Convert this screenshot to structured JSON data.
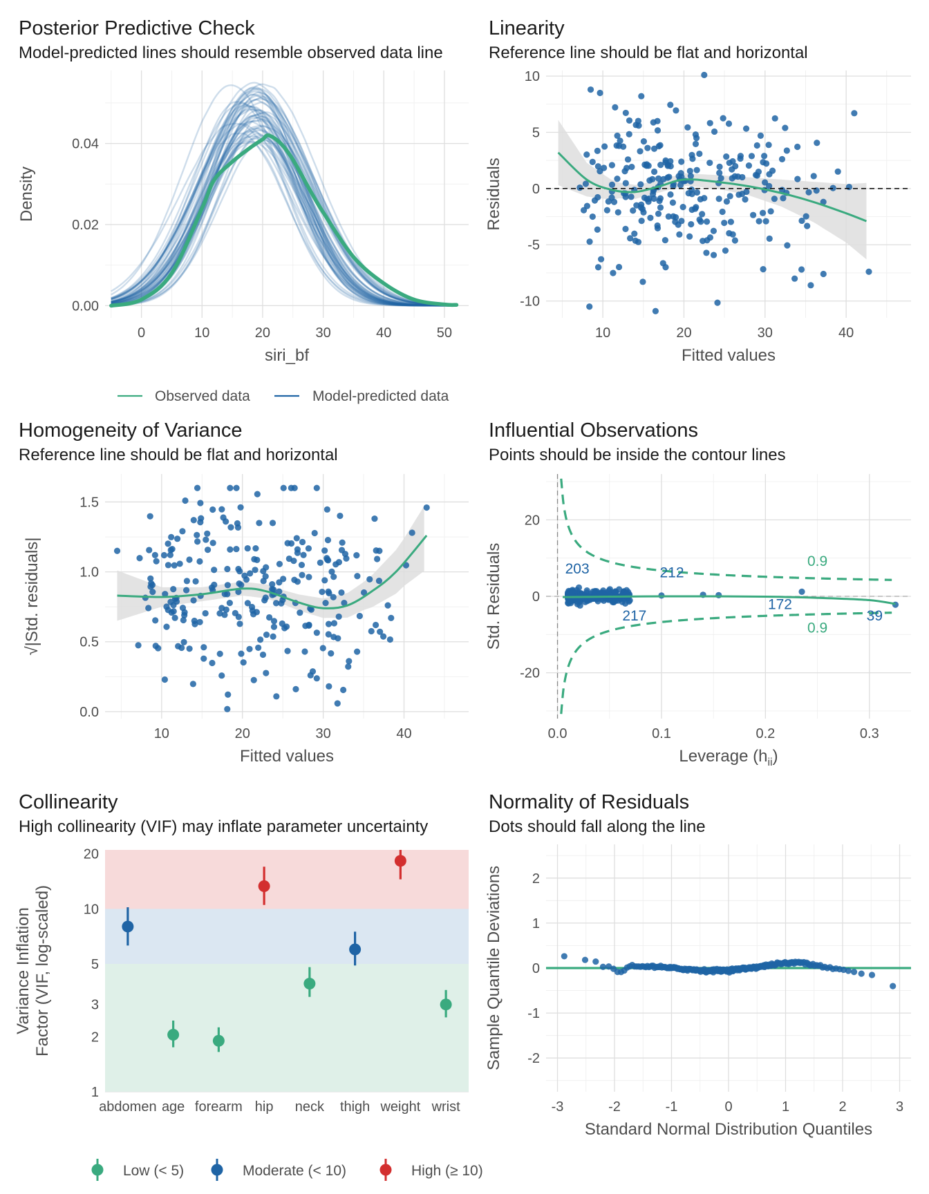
{
  "colors": {
    "green": "#3aaa7f",
    "blue": "#1f64a5",
    "red": "#d32f2f",
    "band_low": "#dff0e8",
    "band_mod": "#dbe7f2",
    "band_high": "#f7dada",
    "ci_gray": "#dedede"
  },
  "chart_data": [
    {
      "id": "ppc",
      "type": "line",
      "title": "Posterior Predictive Check",
      "subtitle": "Model-predicted lines should resemble observed data line",
      "xlabel": "siri_bf",
      "ylabel": "Density",
      "xlim": [
        -6,
        54
      ],
      "ylim": [
        -0.003,
        0.058
      ],
      "xticks": [
        0,
        10,
        20,
        30,
        40,
        50
      ],
      "xtick_labels": [
        "0",
        "10",
        "20",
        "30",
        "40",
        "50"
      ],
      "yticks": [
        0.0,
        0.02,
        0.04
      ],
      "ytick_labels": [
        "0.00",
        "0.02",
        "0.04"
      ],
      "observed": {
        "name": "Observed data",
        "x": [
          -5,
          0,
          5,
          10,
          12,
          15,
          18,
          20,
          21,
          23,
          25,
          28,
          30,
          35,
          40,
          45,
          50,
          52
        ],
        "y": [
          0.0,
          0.0015,
          0.008,
          0.024,
          0.031,
          0.0355,
          0.039,
          0.041,
          0.042,
          0.04,
          0.036,
          0.028,
          0.023,
          0.012,
          0.0055,
          0.0015,
          0.0003,
          0.0002
        ]
      },
      "predicted": {
        "name": "Model-predicted data",
        "n_draws": 50,
        "mean": 18.6,
        "sd": 8.2,
        "peak_range": [
          0.04,
          0.055
        ]
      },
      "legend": [
        "Observed data",
        "Model-predicted data"
      ],
      "legend_position": "bottom"
    },
    {
      "id": "linearity",
      "type": "scatter",
      "title": "Linearity",
      "subtitle": "Reference line should be flat and horizontal",
      "xlabel": "Fitted values",
      "ylabel": "Residuals",
      "xlim": [
        3,
        48
      ],
      "ylim": [
        -11.5,
        10.5
      ],
      "xticks": [
        10,
        20,
        30,
        40
      ],
      "xtick_labels": [
        "10",
        "20",
        "30",
        "40"
      ],
      "yticks": [
        -10,
        -5,
        0,
        5,
        10
      ],
      "ytick_labels": [
        "-10",
        "-5",
        "0",
        "5",
        "10"
      ],
      "n_points": 252,
      "outliers": [
        [
          16.5,
          -10.9
        ],
        [
          22.5,
          10.1
        ],
        [
          41,
          6.7
        ],
        [
          42.8,
          -7.4
        ],
        [
          8.5,
          8.8
        ],
        [
          37.2,
          -7.6
        ],
        [
          34.5,
          -7.2
        ]
      ],
      "smooth": {
        "x": [
          4.5,
          8,
          11,
          14,
          17,
          20,
          24,
          28,
          32,
          36,
          40,
          42.5
        ],
        "y": [
          3.2,
          0.8,
          -0.1,
          -0.3,
          0.2,
          0.8,
          0.6,
          0.2,
          -0.4,
          -1.2,
          -2.2,
          -2.9
        ]
      },
      "ci_halfwidth": {
        "x": [
          4.5,
          8,
          12,
          16,
          20,
          24,
          28,
          32,
          36,
          40,
          42.5
        ],
        "y": [
          2.9,
          1.5,
          0.7,
          0.55,
          0.55,
          0.6,
          0.8,
          1.2,
          1.8,
          2.6,
          3.4
        ]
      },
      "reference_line": 0
    },
    {
      "id": "homogeneity",
      "type": "scatter",
      "title": "Homogeneity of Variance",
      "subtitle": "Reference line should be flat and horizontal",
      "xlabel": "Fitted values",
      "ylabel": "|Std. residuals|",
      "ylabel_prefix": "√",
      "xlim": [
        3,
        48
      ],
      "ylim": [
        -0.05,
        1.7
      ],
      "xticks": [
        10,
        20,
        30,
        40
      ],
      "xtick_labels": [
        "10",
        "20",
        "30",
        "40"
      ],
      "yticks": [
        0.0,
        0.5,
        1.0,
        1.5
      ],
      "ytick_labels": [
        "0.0",
        "0.5",
        "1.0",
        "1.5"
      ],
      "n_points": 252,
      "smooth": {
        "x": [
          4.5,
          10,
          15,
          20,
          23,
          27,
          30,
          33,
          36,
          39,
          42.8
        ],
        "y": [
          0.83,
          0.82,
          0.84,
          0.88,
          0.86,
          0.78,
          0.74,
          0.76,
          0.86,
          1.0,
          1.26
        ]
      },
      "ci_halfwidth": {
        "x": [
          4.5,
          10,
          15,
          20,
          25,
          30,
          35,
          40,
          42.8
        ],
        "y": [
          0.18,
          0.07,
          0.05,
          0.05,
          0.05,
          0.07,
          0.1,
          0.17,
          0.24
        ]
      }
    },
    {
      "id": "influential",
      "type": "scatter",
      "title": "Influential Observations",
      "subtitle": "Points should be inside the contour lines",
      "xlabel": "Leverage (h",
      "xlabel_sub": "ii",
      "xlabel_end": ")",
      "ylabel": "Std. Residuals",
      "xlim": [
        -0.011,
        0.34
      ],
      "ylim": [
        -32,
        32
      ],
      "xticks": [
        0.0,
        0.1,
        0.2,
        0.3
      ],
      "xtick_labels": [
        "0.0",
        "0.1",
        "0.2",
        "0.3"
      ],
      "yticks": [
        -20,
        0,
        20
      ],
      "ytick_labels": [
        "-20",
        "0",
        "20"
      ],
      "contour_level": "0.9",
      "contour_labels": [
        "0.9",
        "0.9"
      ],
      "point_labels": [
        {
          "text": "203",
          "x": 0.019,
          "y": 6
        },
        {
          "text": "212",
          "x": 0.11,
          "y": 5
        },
        {
          "text": "217",
          "x": 0.074,
          "y": -6.3
        },
        {
          "text": "172",
          "x": 0.214,
          "y": -3.3
        },
        {
          "text": "39",
          "x": 0.305,
          "y": -6.3
        }
      ],
      "isolated_points": [
        [
          0.1,
          0.2
        ],
        [
          0.14,
          0.4
        ],
        [
          0.155,
          0.3
        ],
        [
          0.235,
          1.2
        ],
        [
          0.325,
          -2.2
        ]
      ],
      "smooth": {
        "x": [
          0.005,
          0.05,
          0.1,
          0.15,
          0.2,
          0.25,
          0.3,
          0.325
        ],
        "y": [
          -0.2,
          -0.1,
          0.0,
          0.0,
          -0.1,
          -0.4,
          -1.0,
          -2.0
        ]
      }
    },
    {
      "id": "collinearity",
      "type": "scatter",
      "title": "Collinearity",
      "subtitle": "High collinearity (VIF) may inflate parameter uncertainty",
      "xlabel": "",
      "ylabel": "Variance Inflation\nFactor (VIF, log-scaled)",
      "ylabel_lines": [
        "Variance Inflation",
        "Factor (VIF, log-scaled)"
      ],
      "y_scale": "log",
      "ylim": [
        1,
        21
      ],
      "yticks": [
        1,
        2,
        3,
        5,
        10,
        20
      ],
      "ytick_labels": [
        "1",
        "2",
        "3",
        "5",
        "10",
        "20"
      ],
      "bands": [
        {
          "name": "Low",
          "from": 1,
          "to": 5
        },
        {
          "name": "Moderate",
          "from": 5,
          "to": 10
        },
        {
          "name": "High",
          "from": 10,
          "to": 21
        }
      ],
      "categories": [
        "abdomen",
        "age",
        "forearm",
        "hip",
        "neck",
        "thigh",
        "weight",
        "wrist"
      ],
      "values": [
        8.0,
        2.05,
        1.9,
        13.3,
        3.9,
        6.0,
        18.3,
        3.0
      ],
      "ci_low": [
        6.3,
        1.75,
        1.65,
        10.5,
        3.3,
        4.9,
        14.5,
        2.55
      ],
      "ci_high": [
        10.2,
        2.45,
        2.25,
        17.0,
        4.8,
        7.5,
        22.0,
        3.6
      ],
      "levels": [
        "Moderate",
        "Low",
        "Low",
        "High",
        "Low",
        "Moderate",
        "High",
        "Low"
      ],
      "legend": [
        "Low (< 5)",
        "Moderate (< 10)",
        "High (≥ 10)"
      ],
      "legend_position": "bottom"
    },
    {
      "id": "normality",
      "type": "scatter",
      "title": "Normality of Residuals",
      "subtitle": "Dots should fall along the line",
      "xlabel": "Standard Normal Distribution Quantiles",
      "ylabel": "Sample Quantile Deviations",
      "xlim": [
        -3.2,
        3.2
      ],
      "ylim": [
        -2.75,
        2.75
      ],
      "xticks": [
        -3,
        -2,
        -1,
        0,
        1,
        2,
        3
      ],
      "xtick_labels": [
        "-3",
        "-2",
        "-1",
        "0",
        "1",
        "2",
        "3"
      ],
      "yticks": [
        -2,
        -1,
        0,
        1,
        2
      ],
      "ytick_labels": [
        "-2",
        "-1",
        "0",
        "1",
        "2"
      ],
      "reference_line": 0,
      "deviation_curve": {
        "x": [
          -2.9,
          -2.6,
          -2.3,
          -2.1,
          -1.9,
          -1.7,
          -1.5,
          -1.2,
          -1.0,
          -0.7,
          -0.4,
          0.0,
          0.3,
          0.6,
          0.9,
          1.1,
          1.3,
          1.6,
          1.9,
          2.2,
          2.5,
          2.9
        ],
        "y": [
          0.26,
          0.21,
          0.12,
          0.01,
          -0.1,
          0.06,
          0.04,
          0.02,
          0.0,
          -0.03,
          -0.06,
          -0.05,
          -0.01,
          0.04,
          0.1,
          0.11,
          0.13,
          0.05,
          -0.02,
          -0.07,
          -0.16,
          -0.4
        ]
      }
    }
  ]
}
